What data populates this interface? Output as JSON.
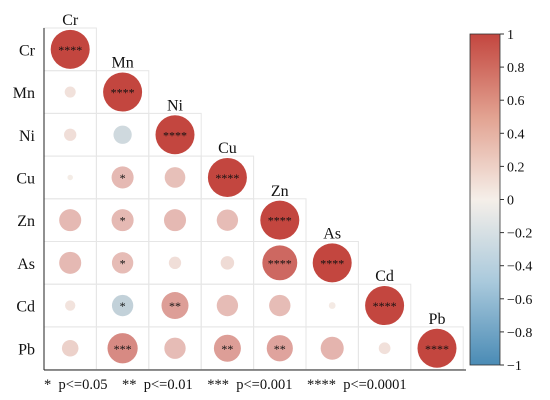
{
  "chart_data": {
    "type": "heatmap",
    "subtype": "lower-triangle correlation circle plot",
    "variables": [
      "Cr",
      "Mn",
      "Ni",
      "Cu",
      "Zn",
      "As",
      "Cd",
      "Pb"
    ],
    "matrix": [
      [
        1.0,
        null,
        null,
        null,
        null,
        null,
        null,
        null
      ],
      [
        0.08,
        1.0,
        null,
        null,
        null,
        null,
        null,
        null
      ],
      [
        0.1,
        -0.22,
        1.0,
        null,
        null,
        null,
        null,
        null
      ],
      [
        0.02,
        0.32,
        0.28,
        1.0,
        null,
        null,
        null,
        null
      ],
      [
        0.32,
        0.32,
        0.32,
        0.3,
        1.0,
        null,
        null,
        null
      ],
      [
        0.32,
        0.3,
        0.1,
        0.12,
        0.8,
        1.0,
        null,
        null
      ],
      [
        0.07,
        -0.3,
        0.48,
        0.3,
        0.3,
        0.03,
        1.0,
        null
      ],
      [
        0.18,
        0.6,
        0.3,
        0.48,
        0.45,
        0.35,
        0.09,
        1.0
      ]
    ],
    "significance": [
      [
        "****",
        "",
        "",
        "",
        "",
        "",
        "",
        ""
      ],
      [
        "",
        "****",
        "",
        "",
        "",
        "",
        "",
        ""
      ],
      [
        "",
        "",
        "****",
        "",
        "",
        "",
        "",
        ""
      ],
      [
        "",
        "*",
        "",
        "****",
        "",
        "",
        "",
        ""
      ],
      [
        "",
        "*",
        "",
        "",
        "****",
        "",
        "",
        ""
      ],
      [
        "",
        "*",
        "",
        "",
        "****",
        "****",
        "",
        ""
      ],
      [
        "",
        "*",
        "**",
        "",
        "",
        "",
        "****",
        ""
      ],
      [
        "",
        "***",
        "",
        "**",
        "**",
        "",
        "",
        "****"
      ]
    ],
    "colorbar": {
      "range": [
        -1,
        1
      ],
      "ticks": [
        "1",
        "0.8",
        "0.6",
        "0.4",
        "0.2",
        "0",
        "−0.2",
        "−0.4",
        "−0.6",
        "−0.8",
        "−1"
      ],
      "colors": {
        "negative": "#4a8bb5",
        "zero": "#f5efe9",
        "positive": "#c3463f"
      }
    },
    "legend_footnote": "*  p<=0.05    **  p<=0.01    ***  p<=0.001    ****  p<=0.0001"
  }
}
